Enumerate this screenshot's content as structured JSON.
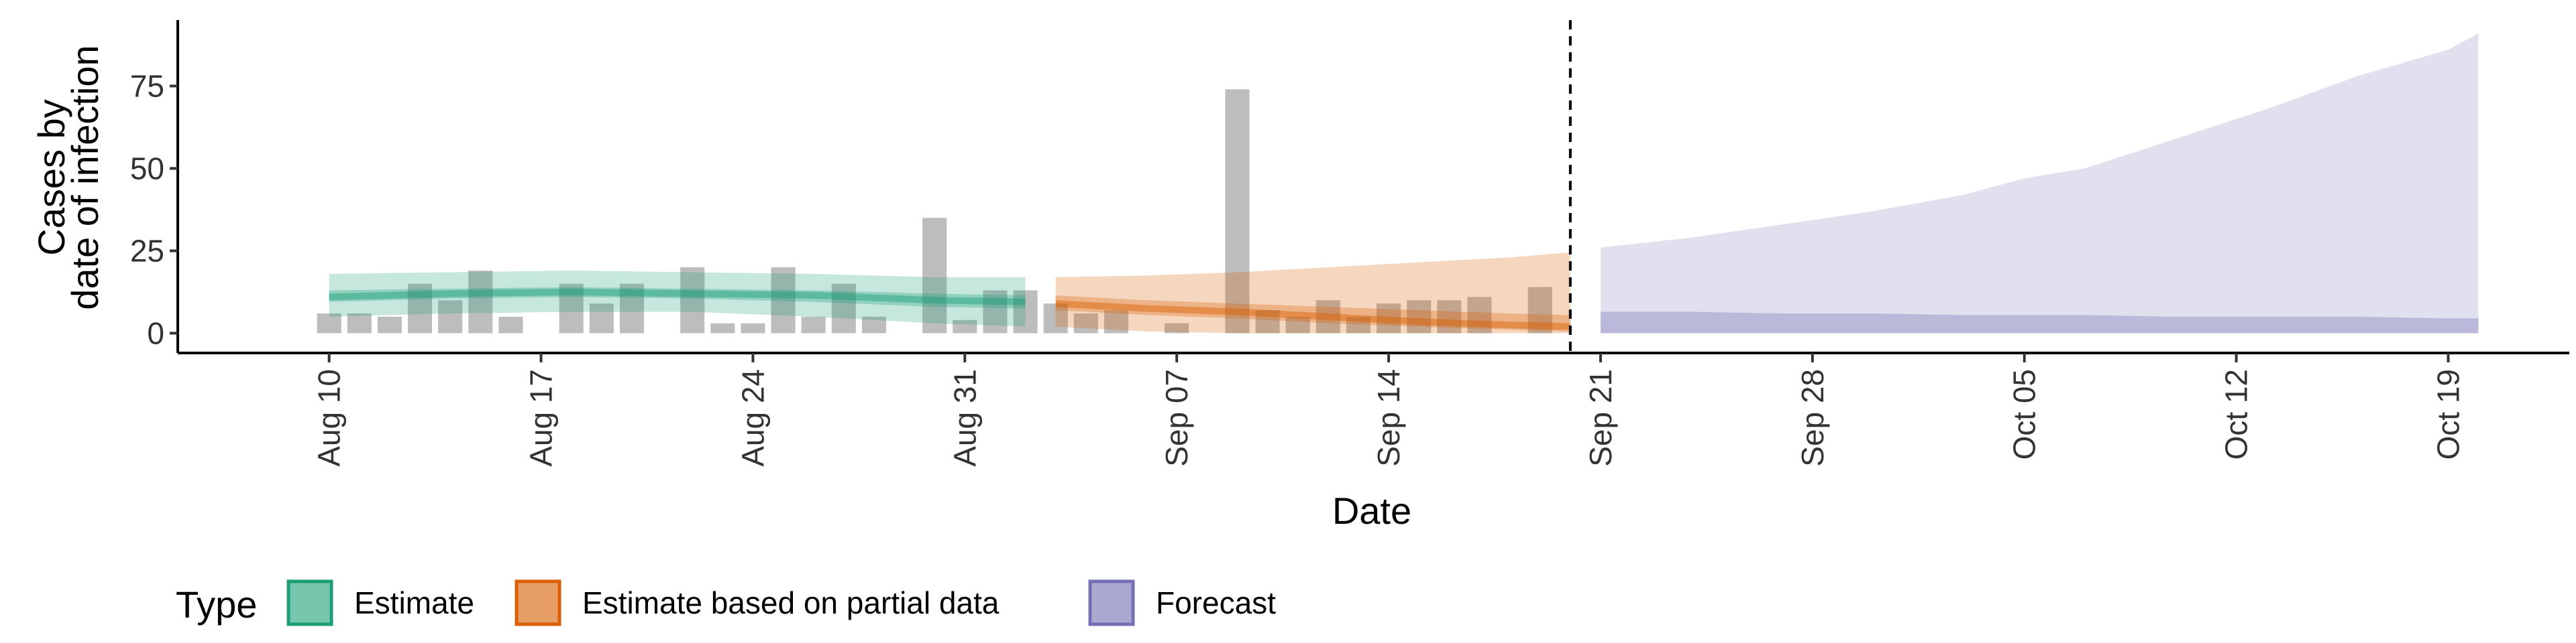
{
  "chart_data": {
    "type": "bar",
    "xlabel": "Date",
    "ylabel_lines": [
      "Cases by",
      "date of infection"
    ],
    "ylim": [
      -6,
      95
    ],
    "y_ticks": [
      0,
      25,
      50,
      75
    ],
    "x_domain": [
      "2020-08-05",
      "2020-10-23"
    ],
    "x_ticks": [
      {
        "date": "2020-08-10",
        "label": "Aug 10"
      },
      {
        "date": "2020-08-17",
        "label": "Aug 17"
      },
      {
        "date": "2020-08-24",
        "label": "Aug 24"
      },
      {
        "date": "2020-08-31",
        "label": "Aug 31"
      },
      {
        "date": "2020-09-07",
        "label": "Sep 07"
      },
      {
        "date": "2020-09-14",
        "label": "Sep 14"
      },
      {
        "date": "2020-09-21",
        "label": "Sep 21"
      },
      {
        "date": "2020-09-28",
        "label": "Sep 28"
      },
      {
        "date": "2020-10-05",
        "label": "Oct 05"
      },
      {
        "date": "2020-10-12",
        "label": "Oct 12"
      },
      {
        "date": "2020-10-19",
        "label": "Oct 19"
      }
    ],
    "vline_date": "2020-09-20",
    "bar_color": "#bdbdbd",
    "observed_cases": {
      "dates": [
        "2020-08-10",
        "2020-08-11",
        "2020-08-12",
        "2020-08-13",
        "2020-08-14",
        "2020-08-15",
        "2020-08-16",
        "2020-08-17",
        "2020-08-18",
        "2020-08-19",
        "2020-08-20",
        "2020-08-21",
        "2020-08-22",
        "2020-08-23",
        "2020-08-24",
        "2020-08-25",
        "2020-08-26",
        "2020-08-27",
        "2020-08-28",
        "2020-08-29",
        "2020-08-30",
        "2020-08-31",
        "2020-09-01",
        "2020-09-02",
        "2020-09-03",
        "2020-09-04",
        "2020-09-05",
        "2020-09-06",
        "2020-09-07",
        "2020-09-08",
        "2020-09-09",
        "2020-09-10",
        "2020-09-11",
        "2020-09-12",
        "2020-09-13",
        "2020-09-14",
        "2020-09-15",
        "2020-09-16",
        "2020-09-17",
        "2020-09-18",
        "2020-09-19"
      ],
      "values": [
        6,
        6,
        5,
        15,
        10,
        19,
        5,
        0,
        15,
        9,
        15,
        0,
        20,
        3,
        3,
        20,
        5,
        15,
        5,
        0,
        35,
        4,
        13,
        13,
        9,
        6,
        7,
        0,
        3,
        0,
        74,
        7,
        5,
        10,
        5,
        9,
        10,
        10,
        11,
        0,
        14
      ]
    },
    "legend_title": "Type",
    "series": [
      {
        "name": "Estimate",
        "color": "#1b9e77",
        "dates": [
          "2020-08-10",
          "2020-08-14",
          "2020-08-18",
          "2020-08-22",
          "2020-08-26",
          "2020-08-30",
          "2020-09-02"
        ],
        "median": [
          11,
          12,
          12.5,
          12,
          11.5,
          10,
          9.5
        ],
        "inner": [
          [
            9.5,
            13
          ],
          [
            10.5,
            13.5
          ],
          [
            11,
            14
          ],
          [
            10.5,
            13.5
          ],
          [
            9.5,
            13
          ],
          [
            8,
            12
          ],
          [
            7.5,
            11.5
          ]
        ],
        "outer": [
          [
            5,
            18
          ],
          [
            6,
            18.5
          ],
          [
            6.5,
            19
          ],
          [
            6.5,
            18.5
          ],
          [
            5,
            18
          ],
          [
            3,
            17
          ],
          [
            2,
            17
          ]
        ]
      },
      {
        "name": "Estimate based on partial data",
        "color": "#d95f02",
        "dates": [
          "2020-09-03",
          "2020-09-06",
          "2020-09-09",
          "2020-09-12",
          "2020-09-15",
          "2020-09-18",
          "2020-09-20"
        ],
        "median": [
          9,
          7.5,
          6.5,
          5,
          3.5,
          2.5,
          2
        ],
        "inner": [
          [
            7,
            11.5
          ],
          [
            5.5,
            10
          ],
          [
            4.5,
            9
          ],
          [
            3,
            8
          ],
          [
            2,
            7
          ],
          [
            1,
            6
          ],
          [
            0.5,
            5.5
          ]
        ],
        "outer": [
          [
            2,
            17
          ],
          [
            0.5,
            17.5
          ],
          [
            0,
            18.5
          ],
          [
            0,
            20
          ],
          [
            0,
            21.5
          ],
          [
            0,
            23
          ],
          [
            0,
            24.5
          ]
        ]
      },
      {
        "name": "Forecast",
        "color": "#7570b3",
        "dates": [
          "2020-09-21",
          "2020-09-24",
          "2020-09-27",
          "2020-09-30",
          "2020-10-03",
          "2020-10-05",
          "2020-10-07",
          "2020-10-10",
          "2020-10-13",
          "2020-10-16",
          "2020-10-19",
          "2020-10-20"
        ],
        "inner": [
          [
            0,
            6.5
          ],
          [
            0,
            6.5
          ],
          [
            0,
            6
          ],
          [
            0,
            6
          ],
          [
            0,
            5.5
          ],
          [
            0,
            5.5
          ],
          [
            0,
            5.5
          ],
          [
            0,
            5
          ],
          [
            0,
            5
          ],
          [
            0,
            5
          ],
          [
            0,
            4.5
          ],
          [
            0,
            4.5
          ]
        ],
        "outer": [
          [
            0,
            26
          ],
          [
            0,
            29
          ],
          [
            0,
            33
          ],
          [
            0,
            37
          ],
          [
            0,
            42
          ],
          [
            0,
            47
          ],
          [
            0,
            50
          ],
          [
            0,
            59
          ],
          [
            0,
            68
          ],
          [
            0,
            78
          ],
          [
            0,
            86
          ],
          [
            0,
            91
          ]
        ]
      }
    ]
  }
}
